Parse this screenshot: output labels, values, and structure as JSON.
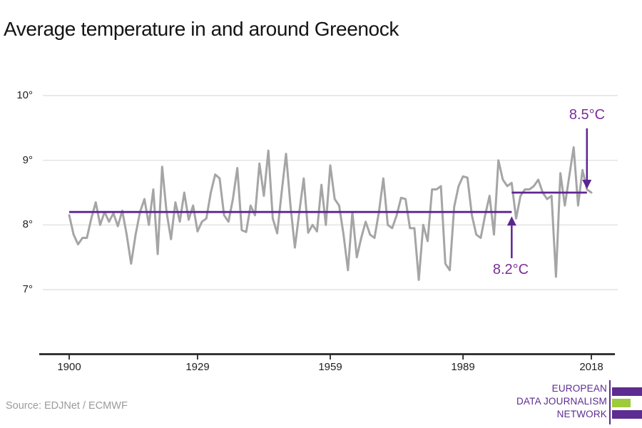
{
  "page": {
    "source": "Source: EDJNet / ECMWF"
  },
  "logo": {
    "lines": [
      "EUROPEAN",
      "DATA JOURNALISM",
      "NETWORK"
    ],
    "purple": "#5d2c91",
    "green": "#9dcb3b"
  },
  "chart_data": {
    "type": "line",
    "title": "Average temperature in and around Greenock",
    "unit": "°C",
    "grid": true,
    "ylim": [
      6.8,
      10.3
    ],
    "xlim": [
      1900,
      2018
    ],
    "years": [
      1900,
      1901,
      1902,
      1903,
      1904,
      1905,
      1906,
      1907,
      1908,
      1909,
      1910,
      1911,
      1912,
      1913,
      1914,
      1915,
      1916,
      1917,
      1918,
      1919,
      1920,
      1921,
      1922,
      1923,
      1924,
      1925,
      1926,
      1927,
      1928,
      1929,
      1930,
      1931,
      1932,
      1933,
      1934,
      1935,
      1936,
      1937,
      1938,
      1939,
      1940,
      1941,
      1942,
      1943,
      1944,
      1945,
      1946,
      1947,
      1948,
      1949,
      1950,
      1951,
      1952,
      1953,
      1954,
      1955,
      1956,
      1957,
      1958,
      1959,
      1960,
      1961,
      1962,
      1963,
      1964,
      1965,
      1966,
      1967,
      1968,
      1969,
      1970,
      1971,
      1972,
      1973,
      1974,
      1975,
      1976,
      1977,
      1978,
      1979,
      1980,
      1981,
      1982,
      1983,
      1984,
      1985,
      1986,
      1987,
      1988,
      1989,
      1990,
      1991,
      1992,
      1993,
      1994,
      1995,
      1996,
      1997,
      1998,
      1999,
      2000,
      2001,
      2002,
      2003,
      2004,
      2005,
      2006,
      2007,
      2008,
      2009,
      2010,
      2011,
      2012,
      2013,
      2014,
      2015,
      2016,
      2017,
      2018
    ],
    "series": [
      {
        "name": "annual-average-temperature",
        "color": "#a5a5a5",
        "values": [
          8.15,
          7.85,
          7.7,
          7.8,
          7.8,
          8.1,
          8.35,
          8.0,
          8.2,
          8.05,
          8.18,
          7.98,
          8.22,
          7.85,
          7.4,
          7.85,
          8.2,
          8.4,
          8.0,
          8.55,
          7.55,
          8.9,
          8.2,
          7.78,
          8.35,
          8.05,
          8.5,
          8.08,
          8.3,
          7.9,
          8.05,
          8.1,
          8.5,
          8.78,
          8.72,
          8.15,
          8.05,
          8.4,
          8.88,
          7.92,
          7.89,
          8.3,
          8.15,
          8.95,
          8.45,
          9.15,
          8.1,
          7.87,
          8.5,
          9.1,
          8.3,
          7.65,
          8.2,
          8.72,
          7.88,
          8.0,
          7.9,
          8.62,
          8.0,
          8.92,
          8.4,
          8.3,
          7.85,
          7.3,
          8.2,
          7.5,
          7.8,
          8.05,
          7.85,
          7.8,
          8.2,
          8.72,
          8.0,
          7.95,
          8.15,
          8.42,
          8.4,
          7.95,
          7.95,
          7.15,
          8.0,
          7.75,
          8.55,
          8.55,
          8.6,
          7.4,
          7.3,
          8.28,
          8.6,
          8.75,
          8.73,
          8.15,
          7.85,
          7.8,
          8.15,
          8.45,
          7.85,
          9.0,
          8.7,
          8.6,
          8.65,
          8.1,
          8.45,
          8.55,
          8.55,
          8.6,
          8.7,
          8.5,
          8.4,
          8.45,
          7.2,
          8.8,
          8.3,
          8.75,
          9.2,
          8.3,
          8.85,
          8.55,
          8.5
        ]
      }
    ],
    "y_ticks": [
      {
        "label": "10°",
        "value": 10
      },
      {
        "label": "9°",
        "value": 9
      },
      {
        "label": "8°",
        "value": 8
      },
      {
        "label": "7°",
        "value": 7
      }
    ],
    "x_ticks": [
      {
        "label": "1900",
        "value": 1900
      },
      {
        "label": "1929",
        "value": 1929
      },
      {
        "label": "1959",
        "value": 1959
      },
      {
        "label": "1989",
        "value": 1989
      },
      {
        "label": "2018",
        "value": 2018
      }
    ],
    "reference_lines": [
      {
        "label": "8.2°C",
        "value": 8.2,
        "from_year": 1900,
        "to_year": 2000,
        "annotation_direction": "up"
      },
      {
        "label": "8.5°C",
        "value": 8.5,
        "from_year": 2000,
        "to_year": 2017,
        "annotation_direction": "down"
      }
    ],
    "accent_color": "#5e2591",
    "annotation_color": "#7b2e96",
    "grid_color": "#e2e2e2",
    "axis_color": "#262626",
    "legend_position": "none"
  }
}
